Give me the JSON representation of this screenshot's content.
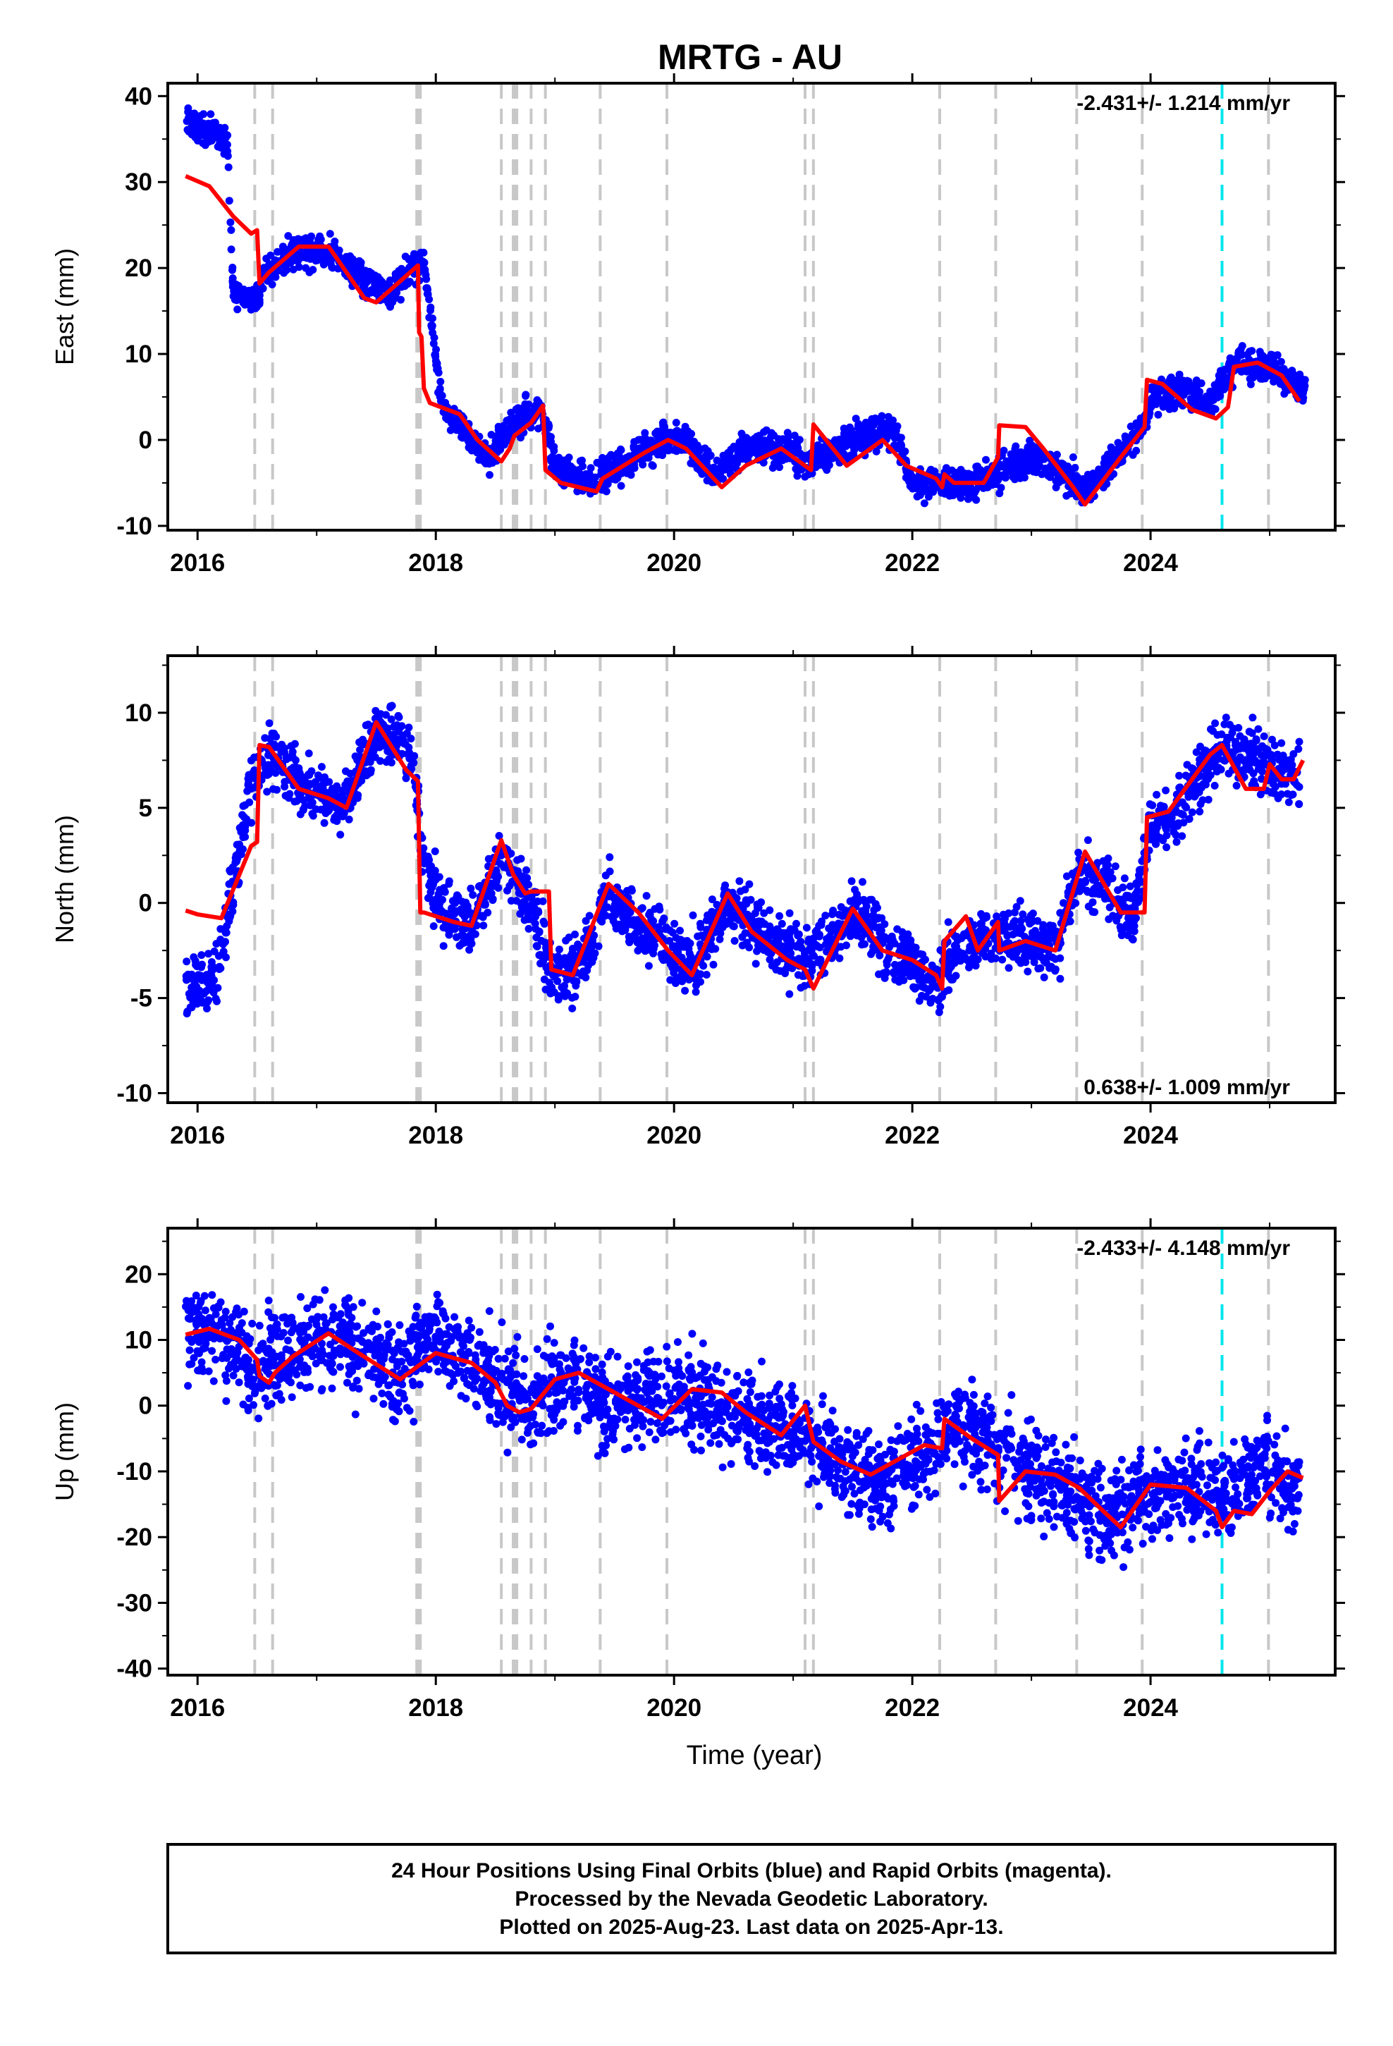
{
  "title": "MRTG - AU",
  "chart_data": [
    {
      "type": "scatter",
      "ylabel": "East (mm)",
      "xlabel": "",
      "xlim": [
        2015.75,
        2025.55
      ],
      "ylim": [
        -10.5,
        41.5
      ],
      "xticks": [
        2016,
        2018,
        2020,
        2022,
        2024
      ],
      "yticks": [
        -10,
        0,
        10,
        20,
        30,
        40
      ],
      "rate": "-2.431+/- 1.214 mm/yr",
      "rate_position": "top-right",
      "series": [
        {
          "color": "#0000ff",
          "kind": "points",
          "noise": 1.3,
          "x": [
            2015.9,
            2016.25,
            2016.3,
            2016.5,
            2016.55,
            2016.85,
            2017.1,
            2017.45,
            2017.6,
            2017.8,
            2017.9,
            2018.05,
            2018.35,
            2018.45,
            2018.6,
            2018.75,
            2018.9,
            2019.0,
            2019.35,
            2019.55,
            2019.9,
            2020.1,
            2020.35,
            2020.6,
            2020.95,
            2021.15,
            2021.5,
            2021.85,
            2022.0,
            2022.2,
            2022.5,
            2023.0,
            2023.3,
            2023.45,
            2023.9,
            2024.05,
            2024.35,
            2024.5,
            2024.6,
            2024.75,
            2025.05,
            2025.3
          ],
          "y": [
            37,
            35,
            17,
            16,
            19,
            22,
            22,
            18,
            17,
            20,
            21,
            4,
            -1,
            -2,
            1,
            3,
            3,
            -3,
            -5,
            -3,
            0,
            0,
            -4,
            -1,
            -1,
            -3,
            0,
            1,
            -5,
            -5,
            -5,
            -2,
            -4,
            -6,
            1,
            5,
            6,
            4,
            7,
            9,
            8,
            6
          ]
        },
        {
          "color": "#ff0000",
          "kind": "model",
          "x": [
            2015.9,
            2016.1,
            2016.3,
            2016.45,
            2016.5,
            2016.52,
            2016.6,
            2016.85,
            2017.1,
            2017.4,
            2017.5,
            2017.85,
            2017.86,
            2017.88,
            2017.9,
            2017.95,
            2018.2,
            2018.35,
            2018.55,
            2018.62,
            2018.66,
            2018.8,
            2018.9,
            2018.92,
            2019.05,
            2019.35,
            2019.4,
            2019.75,
            2019.95,
            2020.1,
            2020.4,
            2020.6,
            2020.9,
            2021.05,
            2021.15,
            2021.17,
            2021.45,
            2021.75,
            2021.95,
            2022.2,
            2022.25,
            2022.27,
            2022.35,
            2022.6,
            2022.72,
            2022.73,
            2022.95,
            2023.1,
            2023.35,
            2023.45,
            2023.75,
            2023.95,
            2023.97,
            2024.1,
            2024.35,
            2024.55,
            2024.65,
            2024.7,
            2024.9,
            2025.1,
            2025.25
          ],
          "y": [
            30.7,
            29.5,
            26,
            24,
            24.4,
            18.2,
            19.5,
            22.5,
            22.5,
            16.5,
            16,
            20.3,
            12.5,
            12,
            6,
            4.3,
            3,
            0,
            -2.5,
            -1,
            0.5,
            2,
            4,
            -3.5,
            -5,
            -6,
            -4.5,
            -1.5,
            0,
            -1,
            -5.5,
            -3,
            -1,
            -2.5,
            -3.5,
            1.8,
            -3,
            0,
            -3,
            -4.5,
            -5.5,
            -4,
            -5,
            -5,
            -2,
            1.7,
            1.5,
            -1,
            -5.5,
            -7.5,
            -2,
            1.5,
            7,
            6.5,
            3.5,
            2.5,
            3.8,
            8.5,
            9,
            7.5,
            4.5
          ]
        }
      ]
    },
    {
      "type": "scatter",
      "ylabel": "North (mm)",
      "xlabel": "",
      "xlim": [
        2015.75,
        2025.55
      ],
      "ylim": [
        -10.5,
        13
      ],
      "xticks": [
        2016,
        2018,
        2020,
        2022,
        2024
      ],
      "yticks": [
        -10,
        -5,
        0,
        5,
        10
      ],
      "rate": "0.638+/- 1.009 mm/yr",
      "rate_position": "bottom-right",
      "series": [
        {
          "color": "#0000ff",
          "kind": "points",
          "noise": 1.1,
          "x": [
            2015.9,
            2016.15,
            2016.3,
            2016.45,
            2016.6,
            2016.9,
            2017.2,
            2017.5,
            2017.8,
            2017.9,
            2018.1,
            2018.3,
            2018.55,
            2018.8,
            2018.95,
            2019.2,
            2019.45,
            2019.7,
            2019.95,
            2020.2,
            2020.45,
            2020.7,
            2020.95,
            2021.1,
            2021.55,
            2021.8,
            2022.0,
            2022.15,
            2022.4,
            2022.6,
            2023.0,
            2023.2,
            2023.4,
            2023.6,
            2023.85,
            2024.0,
            2024.2,
            2024.45,
            2024.6,
            2025.0,
            2025.25
          ],
          "y": [
            -4.5,
            -4,
            1,
            6,
            8,
            6,
            5,
            9,
            8,
            2,
            -0.5,
            -1.5,
            2.5,
            0,
            -3.5,
            -3.5,
            0.5,
            -1,
            -2.5,
            -3,
            0,
            -1.5,
            -2.5,
            -3,
            -0.5,
            -2.5,
            -3,
            -4.5,
            -2.5,
            -1.5,
            -2,
            -2.5,
            1.5,
            1,
            -1,
            4,
            4.5,
            7,
            8.5,
            7,
            6.5
          ]
        },
        {
          "color": "#ff0000",
          "kind": "model",
          "x": [
            2015.9,
            2016.0,
            2016.2,
            2016.45,
            2016.5,
            2016.52,
            2016.6,
            2016.85,
            2017.1,
            2017.25,
            2017.5,
            2017.75,
            2017.85,
            2017.87,
            2017.9,
            2018.15,
            2018.3,
            2018.55,
            2018.65,
            2018.75,
            2018.8,
            2018.95,
            2018.97,
            2019.15,
            2019.45,
            2019.7,
            2019.95,
            2020.15,
            2020.45,
            2020.65,
            2020.95,
            2021.1,
            2021.17,
            2021.5,
            2021.75,
            2022.0,
            2022.2,
            2022.25,
            2022.27,
            2022.45,
            2022.55,
            2022.72,
            2022.73,
            2022.95,
            2023.2,
            2023.45,
            2023.75,
            2023.95,
            2023.97,
            2024.15,
            2024.5,
            2024.6,
            2024.8,
            2024.95,
            2025.0,
            2025.1,
            2025.2,
            2025.28
          ],
          "y": [
            -0.4,
            -0.6,
            -0.8,
            3,
            3.2,
            8.3,
            8.2,
            6,
            5.5,
            5,
            9.5,
            7,
            6.4,
            -0.5,
            -0.5,
            -1,
            -1.2,
            3.3,
            1.5,
            0.5,
            0.6,
            0.6,
            -3.5,
            -3.8,
            1,
            -0.5,
            -2.5,
            -3.8,
            0.5,
            -1.5,
            -3,
            -3.5,
            -4.5,
            -0.3,
            -2.5,
            -3,
            -3.8,
            -4.5,
            -2,
            -0.7,
            -2.5,
            -1,
            -2.5,
            -2,
            -2.5,
            2.7,
            -0.5,
            -0.5,
            4.5,
            4.8,
            7.8,
            8.3,
            6,
            6,
            7.3,
            6.5,
            6.5,
            7.5
          ]
        }
      ]
    },
    {
      "type": "scatter",
      "ylabel": "Up (mm)",
      "xlabel": "Time (year)",
      "xlim": [
        2015.75,
        2025.55
      ],
      "ylim": [
        -41,
        27
      ],
      "xticks": [
        2016,
        2018,
        2020,
        2022,
        2024
      ],
      "yticks": [
        -40,
        -30,
        -20,
        -10,
        0,
        10,
        20
      ],
      "rate": "-2.433+/- 4.148 mm/yr",
      "rate_position": "top-right",
      "series": [
        {
          "color": "#0000ff",
          "kind": "points",
          "noise": 5.0,
          "x": [
            2015.9,
            2016.3,
            2016.5,
            2016.7,
            2017.0,
            2017.4,
            2017.7,
            2017.9,
            2018.2,
            2018.6,
            2018.8,
            2019.1,
            2019.5,
            2019.9,
            2020.3,
            2020.8,
            2021.1,
            2021.5,
            2021.7,
            2022.2,
            2022.4,
            2023.0,
            2023.3,
            2023.6,
            2023.8,
            2024.0,
            2024.3,
            2024.5,
            2025.0,
            2025.25
          ],
          "y": [
            12,
            10,
            5,
            8,
            10,
            8,
            5,
            10,
            8,
            2,
            1,
            4,
            0,
            2,
            0,
            -3,
            -4,
            -10,
            -11,
            -6,
            -2,
            -10,
            -13,
            -17,
            -15,
            -13,
            -12,
            -14,
            -10,
            -12
          ]
        },
        {
          "color": "#ff0000",
          "kind": "model",
          "x": [
            2015.9,
            2016.1,
            2016.35,
            2016.5,
            2016.52,
            2016.6,
            2016.65,
            2016.8,
            2017.1,
            2017.35,
            2017.7,
            2018.0,
            2018.3,
            2018.5,
            2018.6,
            2018.7,
            2018.8,
            2019.0,
            2019.2,
            2019.4,
            2019.65,
            2019.9,
            2020.15,
            2020.4,
            2020.6,
            2020.9,
            2021.1,
            2021.17,
            2021.4,
            2021.65,
            2021.85,
            2022.1,
            2022.25,
            2022.27,
            2022.5,
            2022.72,
            2022.73,
            2022.95,
            2023.2,
            2023.4,
            2023.6,
            2023.75,
            2024.0,
            2024.3,
            2024.55,
            2024.6,
            2024.7,
            2024.85,
            2025.0,
            2025.15,
            2025.28
          ],
          "y": [
            10.8,
            11.7,
            10,
            7,
            4.5,
            3.5,
            5,
            7.5,
            11,
            8,
            4,
            8,
            6.5,
            3.5,
            0,
            -1,
            -0.5,
            4,
            5,
            3,
            0.5,
            -2,
            2.5,
            2,
            -1,
            -4.5,
            0,
            -5.5,
            -8.5,
            -10.5,
            -8.5,
            -6,
            -6.5,
            -2,
            -5,
            -7.5,
            -14.5,
            -10,
            -10.5,
            -12.5,
            -16,
            -18.5,
            -12,
            -12.5,
            -16,
            -18.5,
            -16,
            -16.5,
            -13,
            -10,
            -11
          ]
        }
      ]
    }
  ],
  "event_lines": [
    2016.48,
    2016.63,
    2017.84,
    2017.85,
    2017.86,
    2017.87,
    2018.55,
    2018.65,
    2018.66,
    2018.67,
    2018.68,
    2018.8,
    2018.92,
    2019.38,
    2019.94,
    2021.1,
    2021.17,
    2022.23,
    2022.7,
    2023.38,
    2023.93,
    2024.99
  ],
  "special_lines": [
    2024.6
  ],
  "colors": {
    "points": "#0000ff",
    "model": "#ff0000",
    "event_line": "#c8c8c8",
    "special_line": "#00e5ee",
    "frame": "#000000"
  },
  "caption": {
    "line1": "24 Hour Positions Using Final Orbits (blue) and Rapid Orbits (magenta).",
    "line2": "Processed by the Nevada Geodetic Laboratory.",
    "line3": "Plotted on 2025-Aug-23. Last data on 2025-Apr-13."
  }
}
